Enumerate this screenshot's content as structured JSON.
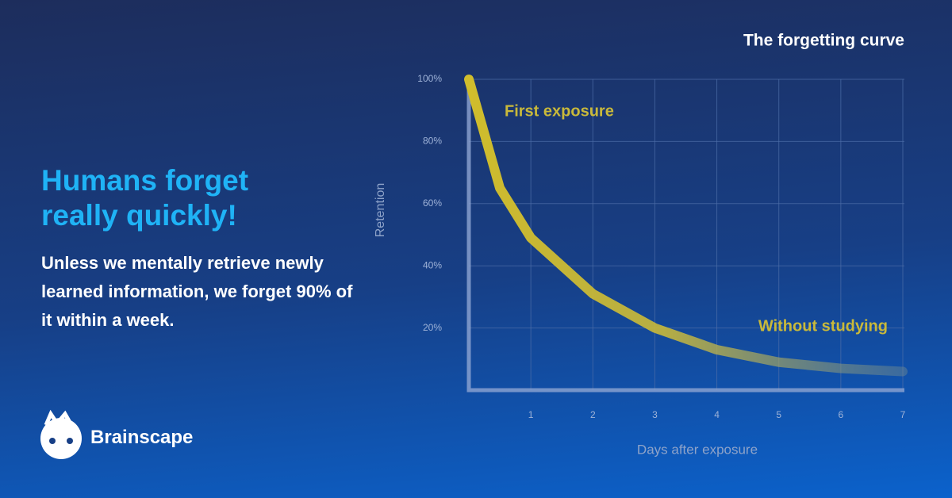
{
  "headline": "Humans forget really quickly!",
  "body": "Unless we mentally retrieve newly learned information, we forget 90% of it within a week.",
  "brand": "Brainscape",
  "chart_data": {
    "type": "line",
    "title": "The forgetting curve",
    "x_label": "Days after exposure",
    "y_label": "Retention",
    "annotations": [
      "First exposure",
      "Without studying"
    ],
    "x": [
      0,
      0.5,
      1,
      2,
      3,
      4,
      5,
      6,
      7
    ],
    "values": [
      100,
      65,
      49,
      31,
      20,
      13,
      9,
      7,
      6
    ],
    "color": "#c9b93a",
    "xlim": [
      0,
      7
    ],
    "xticks": [
      1,
      2,
      3,
      4,
      5,
      6,
      7
    ],
    "ylim": [
      0,
      100
    ],
    "yticks": [
      {
        "value": 20,
        "label": "20%"
      },
      {
        "value": 40,
        "label": "40%"
      },
      {
        "value": 60,
        "label": "60%"
      },
      {
        "value": 80,
        "label": "80%"
      },
      {
        "value": 100,
        "label": "100%"
      }
    ],
    "grid": true
  }
}
